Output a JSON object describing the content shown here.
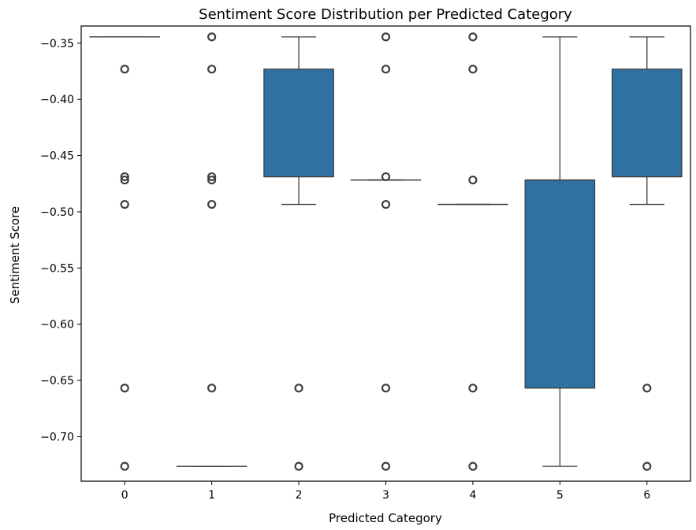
{
  "chart_data": {
    "type": "box",
    "title": "Sentiment Score Distribution per Predicted Category",
    "xlabel": "Predicted Category",
    "ylabel": "Sentiment Score",
    "categories": [
      "0",
      "1",
      "2",
      "3",
      "4",
      "5",
      "6"
    ],
    "yticks": [
      -0.35,
      -0.4,
      -0.45,
      -0.5,
      -0.55,
      -0.6,
      -0.65,
      -0.7
    ],
    "ytick_labels": [
      "−0.35",
      "−0.40",
      "−0.45",
      "−0.50",
      "−0.55",
      "−0.60",
      "−0.65",
      "−0.70"
    ],
    "ylim": [
      -0.7396,
      -0.3347
    ],
    "grid": false,
    "box_color": "#2f71a2",
    "boxes": [
      {
        "category": "0",
        "whisker_low": -0.3444,
        "q1": -0.3444,
        "median": -0.3444,
        "q3": -0.3444,
        "whisker_high": -0.3444,
        "outliers": [
          -0.3731,
          -0.4688,
          -0.4717,
          -0.4934,
          -0.6568,
          -0.7264
        ]
      },
      {
        "category": "1",
        "whisker_low": -0.7264,
        "q1": -0.7264,
        "median": -0.7264,
        "q3": -0.7264,
        "whisker_high": -0.7264,
        "outliers": [
          -0.3444,
          -0.3731,
          -0.4688,
          -0.4717,
          -0.4934,
          -0.6568
        ]
      },
      {
        "category": "2",
        "whisker_low": -0.4934,
        "q1": -0.4688,
        "median": -0.4688,
        "q3": -0.3731,
        "whisker_high": -0.3444,
        "outliers": [
          -0.6568,
          -0.7264
        ]
      },
      {
        "category": "3",
        "whisker_low": -0.4717,
        "q1": -0.4717,
        "median": -0.4717,
        "q3": -0.4717,
        "whisker_high": -0.4717,
        "outliers": [
          -0.3444,
          -0.3731,
          -0.4688,
          -0.4934,
          -0.6568,
          -0.7264
        ]
      },
      {
        "category": "4",
        "whisker_low": -0.4934,
        "q1": -0.4934,
        "median": -0.4934,
        "q3": -0.4934,
        "whisker_high": -0.4934,
        "outliers": [
          -0.3444,
          -0.3731,
          -0.4717,
          -0.6568,
          -0.7264
        ]
      },
      {
        "category": "5",
        "whisker_low": -0.7264,
        "q1": -0.6568,
        "median": -0.4717,
        "q3": -0.4717,
        "whisker_high": -0.3444,
        "outliers": []
      },
      {
        "category": "6",
        "whisker_low": -0.4934,
        "q1": -0.4688,
        "median": -0.4688,
        "q3": -0.3731,
        "whisker_high": -0.3444,
        "outliers": [
          -0.6568,
          -0.7264
        ]
      }
    ]
  }
}
